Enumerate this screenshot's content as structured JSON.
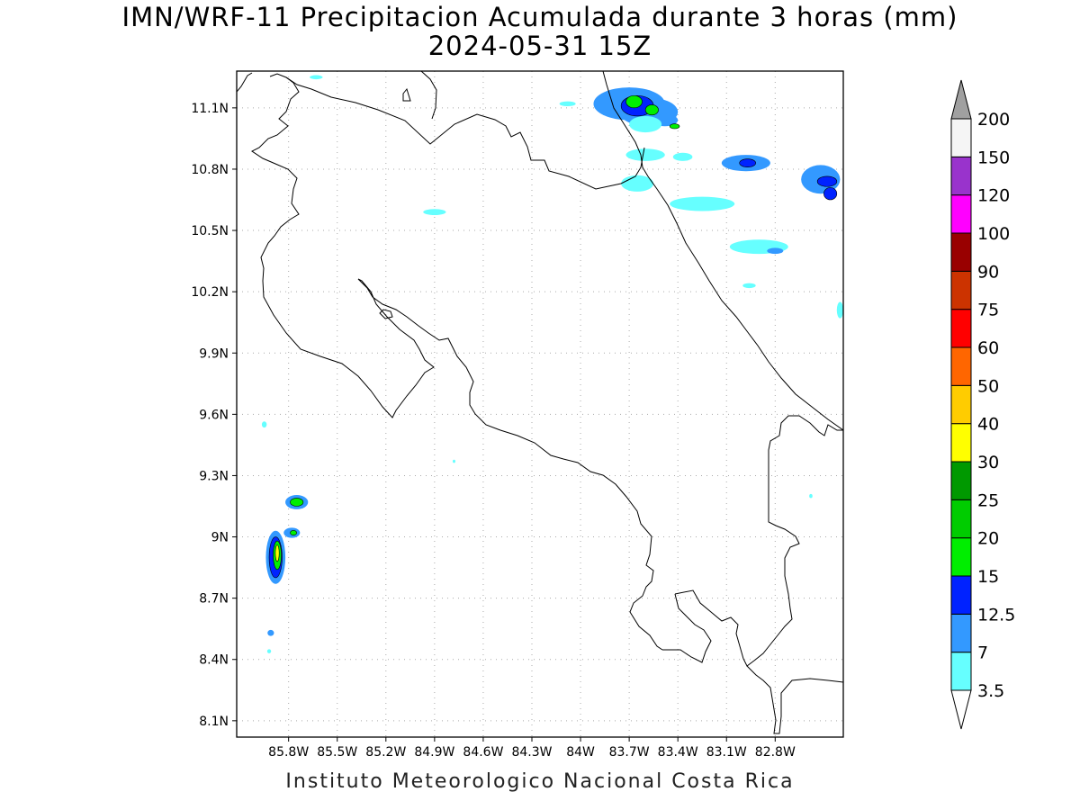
{
  "title": {
    "line1": "IMN/WRF-11 Precipitacion Acumulada durante 3 horas (mm)",
    "line2": "2024-05-31 15Z"
  },
  "footer": "Instituto Meteorologico Nacional Costa Rica",
  "map": {
    "lon_range": [
      -86.12,
      -82.38
    ],
    "lat_range": [
      8.02,
      11.28
    ],
    "grid": true,
    "x_ticks": [
      {
        "value": -85.8,
        "label": "85.8W"
      },
      {
        "value": -85.5,
        "label": "85.5W"
      },
      {
        "value": -85.2,
        "label": "85.2W"
      },
      {
        "value": -84.9,
        "label": "84.9W"
      },
      {
        "value": -84.6,
        "label": "84.6W"
      },
      {
        "value": -84.3,
        "label": "84.3W"
      },
      {
        "value": -84.0,
        "label": "84W"
      },
      {
        "value": -83.7,
        "label": "83.7W"
      },
      {
        "value": -83.4,
        "label": "83.4W"
      },
      {
        "value": -83.1,
        "label": "83.1W"
      },
      {
        "value": -82.8,
        "label": "82.8W"
      }
    ],
    "y_ticks": [
      {
        "value": 11.1,
        "label": "11.1N"
      },
      {
        "value": 10.8,
        "label": "10.8N"
      },
      {
        "value": 10.5,
        "label": "10.5N"
      },
      {
        "value": 10.2,
        "label": "10.2N"
      },
      {
        "value": 9.9,
        "label": "9.9N"
      },
      {
        "value": 9.6,
        "label": "9.6N"
      },
      {
        "value": 9.3,
        "label": "9.3N"
      },
      {
        "value": 9.0,
        "label": "9N"
      },
      {
        "value": 8.7,
        "label": "8.7N"
      },
      {
        "value": 8.4,
        "label": "8.4N"
      },
      {
        "value": 8.1,
        "label": "8.1N"
      }
    ],
    "precip_cells": [
      {
        "lon": -83.7,
        "lat": 11.12,
        "rx": 0.22,
        "ry": 0.08,
        "value": 7
      },
      {
        "lon": -83.58,
        "lat": 11.08,
        "rx": 0.18,
        "ry": 0.07,
        "value": 7
      },
      {
        "lon": -83.65,
        "lat": 11.11,
        "rx": 0.1,
        "ry": 0.05,
        "value": 12.5
      },
      {
        "lon": -83.67,
        "lat": 11.13,
        "rx": 0.05,
        "ry": 0.03,
        "value": 15
      },
      {
        "lon": -83.56,
        "lat": 11.09,
        "rx": 0.04,
        "ry": 0.025,
        "value": 15
      },
      {
        "lon": -83.48,
        "lat": 11.04,
        "rx": 0.08,
        "ry": 0.03,
        "value": 7
      },
      {
        "lon": -83.42,
        "lat": 11.01,
        "rx": 0.03,
        "ry": 0.012,
        "value": 15
      },
      {
        "lon": -83.6,
        "lat": 11.02,
        "rx": 0.1,
        "ry": 0.04,
        "value": 3.5
      },
      {
        "lon": -83.6,
        "lat": 10.87,
        "rx": 0.12,
        "ry": 0.03,
        "value": 3.5
      },
      {
        "lon": -83.37,
        "lat": 10.86,
        "rx": 0.06,
        "ry": 0.02,
        "value": 3.5
      },
      {
        "lon": -82.98,
        "lat": 10.83,
        "rx": 0.15,
        "ry": 0.04,
        "value": 7
      },
      {
        "lon": -82.97,
        "lat": 10.83,
        "rx": 0.05,
        "ry": 0.02,
        "value": 12.5
      },
      {
        "lon": -82.52,
        "lat": 10.75,
        "rx": 0.12,
        "ry": 0.07,
        "value": 7
      },
      {
        "lon": -82.48,
        "lat": 10.74,
        "rx": 0.06,
        "ry": 0.025,
        "value": 12.5
      },
      {
        "lon": -82.46,
        "lat": 10.68,
        "rx": 0.04,
        "ry": 0.03,
        "value": 12.5
      },
      {
        "lon": -83.65,
        "lat": 10.73,
        "rx": 0.1,
        "ry": 0.04,
        "value": 3.5
      },
      {
        "lon": -83.25,
        "lat": 10.63,
        "rx": 0.2,
        "ry": 0.035,
        "value": 3.5
      },
      {
        "lon": -82.9,
        "lat": 10.42,
        "rx": 0.18,
        "ry": 0.035,
        "value": 3.5
      },
      {
        "lon": -82.8,
        "lat": 10.4,
        "rx": 0.05,
        "ry": 0.015,
        "value": 7
      },
      {
        "lon": -82.96,
        "lat": 10.23,
        "rx": 0.04,
        "ry": 0.012,
        "value": 3.5
      },
      {
        "lon": -82.4,
        "lat": 10.11,
        "rx": 0.02,
        "ry": 0.04,
        "value": 3.5
      },
      {
        "lon": -84.9,
        "lat": 10.59,
        "rx": 0.07,
        "ry": 0.015,
        "value": 3.5
      },
      {
        "lon": -84.08,
        "lat": 11.12,
        "rx": 0.05,
        "ry": 0.012,
        "value": 3.5
      },
      {
        "lon": -85.63,
        "lat": 11.25,
        "rx": 0.04,
        "ry": 0.01,
        "value": 3.5
      },
      {
        "lon": -85.75,
        "lat": 9.17,
        "rx": 0.07,
        "ry": 0.035,
        "value": 7
      },
      {
        "lon": -85.75,
        "lat": 9.17,
        "rx": 0.04,
        "ry": 0.02,
        "value": 15
      },
      {
        "lon": -85.88,
        "lat": 8.9,
        "rx": 0.06,
        "ry": 0.13,
        "value": 7
      },
      {
        "lon": -85.88,
        "lat": 8.9,
        "rx": 0.04,
        "ry": 0.1,
        "value": 12.5
      },
      {
        "lon": -85.87,
        "lat": 8.91,
        "rx": 0.025,
        "ry": 0.07,
        "value": 15
      },
      {
        "lon": -85.87,
        "lat": 8.92,
        "rx": 0.012,
        "ry": 0.04,
        "value": 30
      },
      {
        "lon": -85.78,
        "lat": 9.02,
        "rx": 0.05,
        "ry": 0.025,
        "value": 7
      },
      {
        "lon": -85.77,
        "lat": 9.02,
        "rx": 0.02,
        "ry": 0.012,
        "value": 15
      },
      {
        "lon": -85.95,
        "lat": 9.55,
        "rx": 0.015,
        "ry": 0.015,
        "value": 3.5
      },
      {
        "lon": -85.91,
        "lat": 8.53,
        "rx": 0.02,
        "ry": 0.015,
        "value": 7
      },
      {
        "lon": -85.92,
        "lat": 8.44,
        "rx": 0.012,
        "ry": 0.01,
        "value": 3.5
      },
      {
        "lon": -84.78,
        "lat": 9.37,
        "rx": 0.008,
        "ry": 0.008,
        "value": 3.5
      },
      {
        "lon": -82.58,
        "lat": 9.2,
        "rx": 0.01,
        "ry": 0.01,
        "value": 3.5
      }
    ]
  },
  "colorbar": {
    "levels": [
      {
        "label": "3.5",
        "color": "#66ffff"
      },
      {
        "label": "7",
        "color": "#3399ff"
      },
      {
        "label": "12.5",
        "color": "#0022ff"
      },
      {
        "label": "15",
        "color": "#00ee00"
      },
      {
        "label": "20",
        "color": "#00cc00"
      },
      {
        "label": "25",
        "color": "#009900"
      },
      {
        "label": "30",
        "color": "#ffff00"
      },
      {
        "label": "40",
        "color": "#ffcc00"
      },
      {
        "label": "50",
        "color": "#ff6600"
      },
      {
        "label": "60",
        "color": "#ff0000"
      },
      {
        "label": "75",
        "color": "#cc3300"
      },
      {
        "label": "90",
        "color": "#990000"
      },
      {
        "label": "100",
        "color": "#ff00ff"
      },
      {
        "label": "120",
        "color": "#9933cc"
      },
      {
        "label": "150",
        "color": "#f5f5f5"
      },
      {
        "label": "200",
        "color": "#a0a0a0"
      }
    ],
    "below_color": "#ffffff",
    "above_color": "#a0a0a0"
  }
}
